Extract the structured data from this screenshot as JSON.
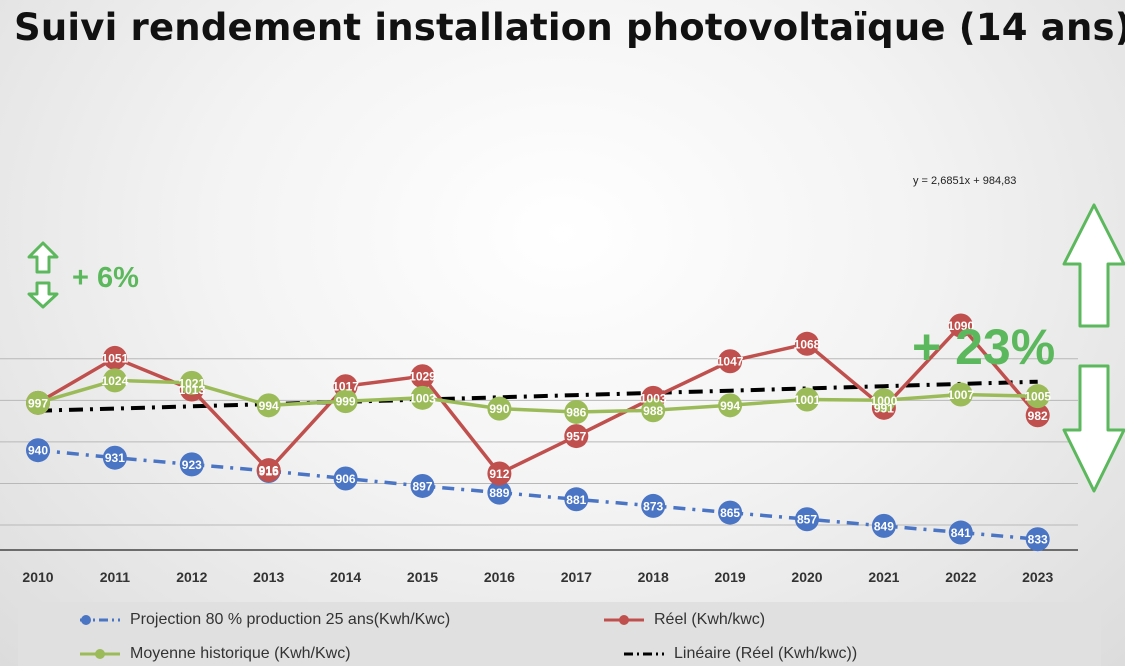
{
  "chart_data": {
    "type": "line",
    "title": "Suivi rendement installation photovoltaïque (14 ans)",
    "xlabel": "",
    "ylabel": "",
    "ylim": [
      820,
      1090
    ],
    "categories": [
      "2010",
      "2011",
      "2012",
      "2013",
      "2014",
      "2015",
      "2016",
      "2017",
      "2018",
      "2019",
      "2020",
      "2021",
      "2022",
      "2023"
    ],
    "series": [
      {
        "name": "Projection 80 % production 25 ans(Kwh/Kwc)",
        "color": "#4a74c4",
        "style": "dashdot",
        "values": [
          940,
          931,
          923,
          915,
          906,
          897,
          889,
          881,
          873,
          865,
          857,
          849,
          841,
          833
        ],
        "labels": [
          "940",
          "931",
          "923",
          "915",
          "906",
          "897",
          "889",
          "881",
          "873",
          "865",
          "857",
          "849",
          "841",
          "833"
        ]
      },
      {
        "name": "Réel (Kwh/kwc)",
        "color": "#c0504d",
        "style": "solid",
        "values": [
          997,
          1051,
          1013,
          916,
          1017,
          1029,
          912,
          957,
          1003,
          1047,
          1068,
          991,
          1090,
          982
        ],
        "labels": [
          "",
          "1051",
          "1013",
          "916",
          "1017",
          "1029",
          "912",
          "957",
          "1003",
          "1047",
          "1068",
          "991",
          "1090",
          "982"
        ]
      },
      {
        "name": "Moyenne historique (Kwh/Kwc)",
        "color": "#9bbb59",
        "style": "solid",
        "values": [
          997,
          1024,
          1021,
          994,
          999,
          1003,
          990,
          986,
          988,
          994,
          1001,
          1000,
          1007,
          1005
        ],
        "labels": [
          "997",
          "1024",
          "1021",
          "994",
          "999",
          "1003",
          "990",
          "986",
          "988",
          "994",
          "1001",
          "1000",
          "1007",
          "1005"
        ]
      },
      {
        "name": "Linéaire (Réel (Kwh/kwc))",
        "color": "#000000",
        "style": "dashdot",
        "values": [
          987.5,
          990.1,
          992.8,
          995.5,
          998.2,
          1000.9,
          1003.6,
          1006.3,
          1008.9,
          1011.6,
          1014.3,
          1017.0,
          1019.7,
          1022.4
        ],
        "labels": []
      }
    ],
    "annotations": {
      "trendline_equation": "y = 2,6851x + 984,83",
      "gap_small": "+ 6%",
      "gap_large": "+ 23%"
    },
    "legend_position": "bottom",
    "grid": true
  }
}
